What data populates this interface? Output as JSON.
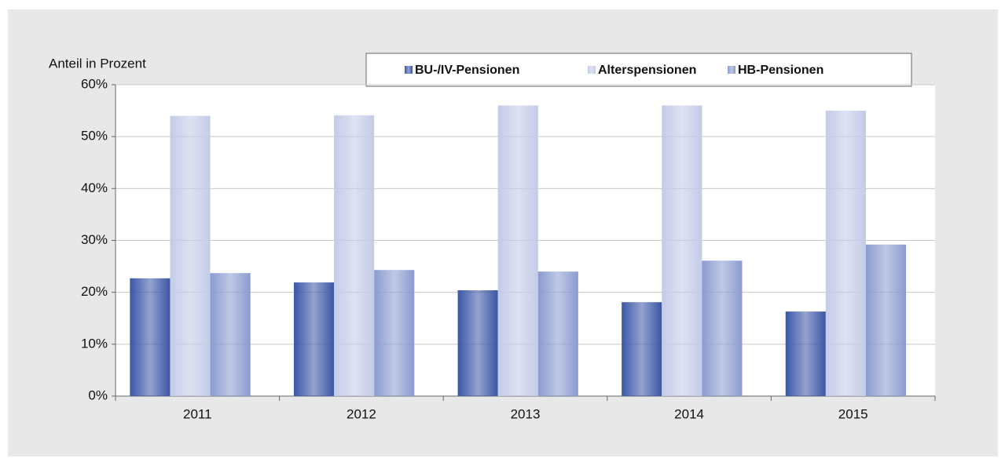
{
  "chart_data": {
    "type": "bar",
    "y_label": "Anteil in Prozent",
    "categories": [
      "2011",
      "2012",
      "2013",
      "2014",
      "2015"
    ],
    "series": [
      {
        "name": "BU-/IV-Pensionen",
        "color": "#3c56a6",
        "values": [
          22.7,
          21.9,
          20.4,
          18.1,
          16.3
        ]
      },
      {
        "name": "Alterspensionen",
        "color": "#c3cbe6",
        "values": [
          54,
          54.1,
          56,
          56,
          55
        ]
      },
      {
        "name": "HB-Pensionen",
        "color": "#8a9bd0",
        "values": [
          23.7,
          24.3,
          24,
          26.1,
          29.2
        ]
      }
    ],
    "ylim": [
      0,
      60
    ],
    "yticks": [
      {
        "value": 0,
        "label": "0%"
      },
      {
        "value": 10,
        "label": "10%"
      },
      {
        "value": 20,
        "label": "20%"
      },
      {
        "value": 30,
        "label": "30%"
      },
      {
        "value": 40,
        "label": "40%"
      },
      {
        "value": 50,
        "label": "50%"
      },
      {
        "value": 60,
        "label": "60%"
      }
    ],
    "grid": true
  }
}
